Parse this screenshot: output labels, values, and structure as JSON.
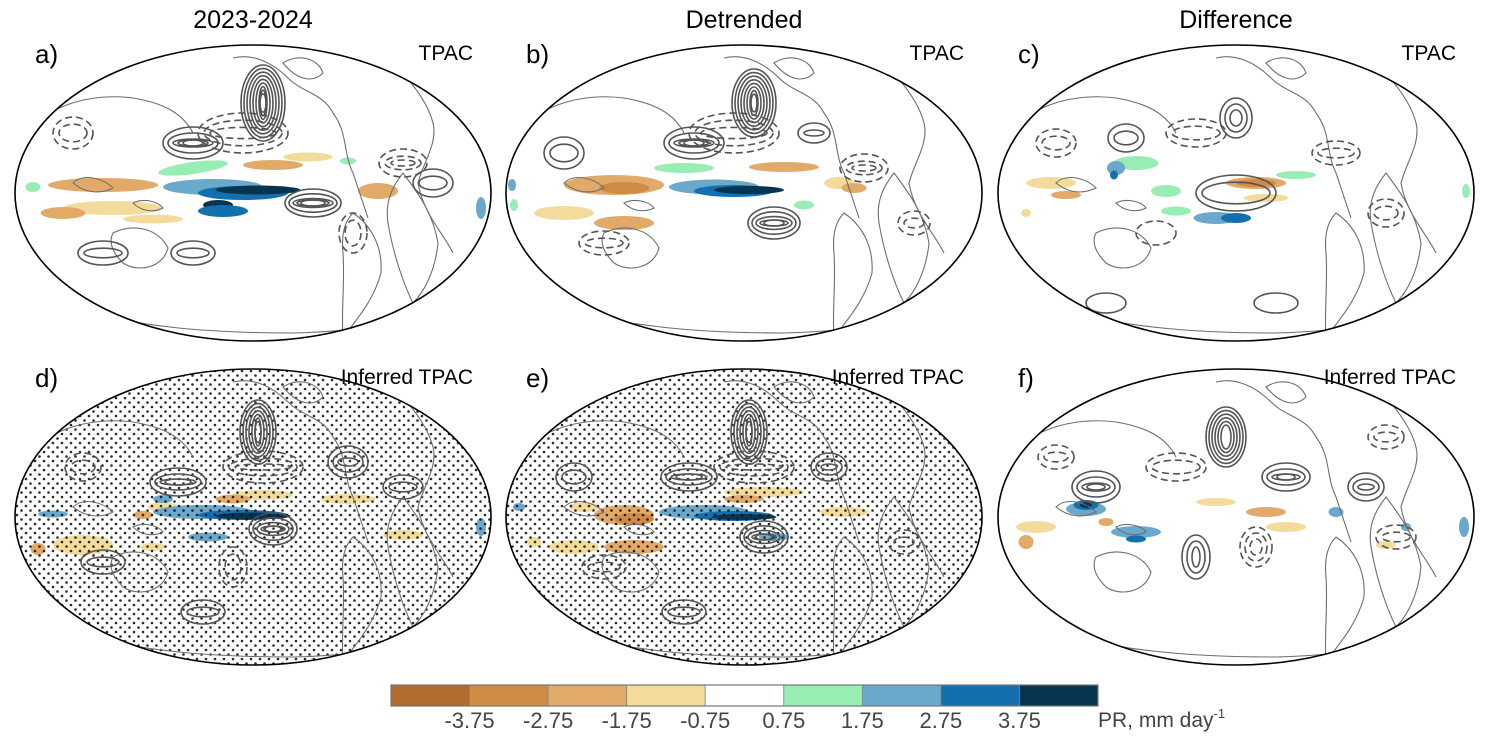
{
  "columns": [
    "2023-2024",
    "Detrended",
    "Difference"
  ],
  "panels": [
    {
      "label": "a)",
      "region": "TPAC",
      "stippled": false
    },
    {
      "label": "b)",
      "region": "TPAC",
      "stippled": false
    },
    {
      "label": "c)",
      "region": "TPAC",
      "stippled": false
    },
    {
      "label": "d)",
      "region": "Inferred TPAC",
      "stippled": true
    },
    {
      "label": "e)",
      "region": "Inferred TPAC",
      "stippled": true
    },
    {
      "label": "f)",
      "region": "Inferred TPAC",
      "stippled": false
    }
  ],
  "colorbar": {
    "variable": "PR, mm day",
    "unit_exponent": "-1",
    "ticks": [
      "-3.75",
      "-2.75",
      "-1.75",
      "-0.75",
      "0.75",
      "1.75",
      "2.75",
      "3.75"
    ],
    "colors": [
      "#b36b2e",
      "#cf8a46",
      "#e2aa69",
      "#f3dc9b",
      "#ffffff",
      "#97edb4",
      "#6aa8cc",
      "#146fae",
      "#07344f"
    ]
  },
  "style": {
    "coast_color": "#6e6e6e",
    "contour_color": "#545454"
  }
}
